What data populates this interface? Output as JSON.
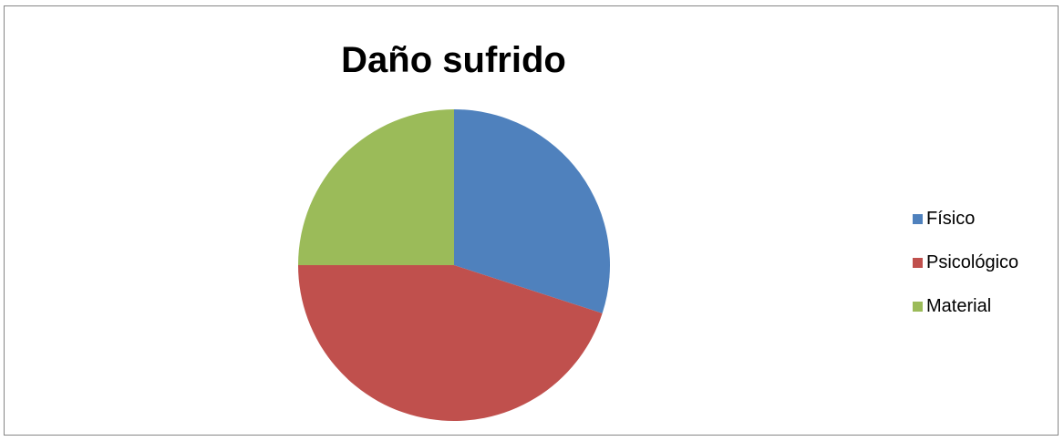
{
  "chart_data": {
    "type": "pie",
    "title": "Daño sufrido",
    "categories": [
      "Físico",
      "Psicológico",
      "Material"
    ],
    "values": [
      30,
      45,
      25
    ],
    "colors": [
      "#4f81bd",
      "#c0504d",
      "#9bbb59"
    ],
    "start_angle_deg": 0,
    "direction": "clockwise",
    "legend_position": "right"
  },
  "legend": {
    "items": [
      {
        "label": "Físico",
        "color": "#4f81bd"
      },
      {
        "label": "Psicológico",
        "color": "#c0504d"
      },
      {
        "label": "Material",
        "color": "#9bbb59"
      }
    ]
  }
}
